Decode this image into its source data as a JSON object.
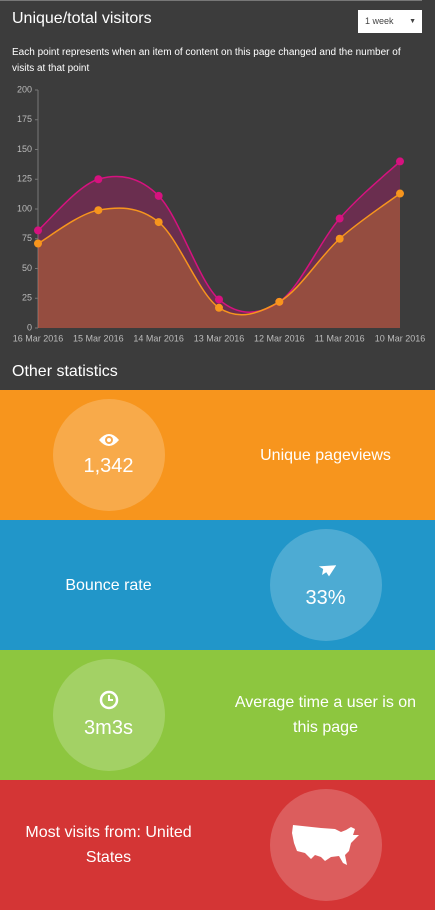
{
  "header": {
    "title": "Unique/total visitors",
    "select": "1 week"
  },
  "description": "Each point represents when an item of content on this page changed and the number of visits at that point",
  "chart_data": {
    "type": "line",
    "categories": [
      "16 Mar 2016",
      "15 Mar 2016",
      "14 Mar 2016",
      "13 Mar 2016",
      "12 Mar 2016",
      "11 Mar 2016",
      "10 Mar 2016"
    ],
    "series": [
      {
        "color": "#d6127f",
        "values": [
          82,
          125,
          111,
          24,
          22,
          92,
          140
        ]
      },
      {
        "color": "#f7951d",
        "values": [
          71,
          99,
          89,
          17,
          22,
          75,
          113
        ]
      }
    ],
    "ylim": [
      0,
      200
    ],
    "yticks": [
      0,
      25,
      50,
      75,
      100,
      125,
      150,
      175,
      200
    ],
    "grid": false
  },
  "other_statistics": {
    "title": "Other statistics",
    "items": [
      {
        "value": "1,342",
        "label": "Unique pageviews"
      },
      {
        "label": "Bounce rate",
        "value": "33%"
      },
      {
        "value": "3m3s",
        "label": "Average time a user is on this page"
      },
      {
        "label": "Most visits from: United States"
      }
    ]
  }
}
